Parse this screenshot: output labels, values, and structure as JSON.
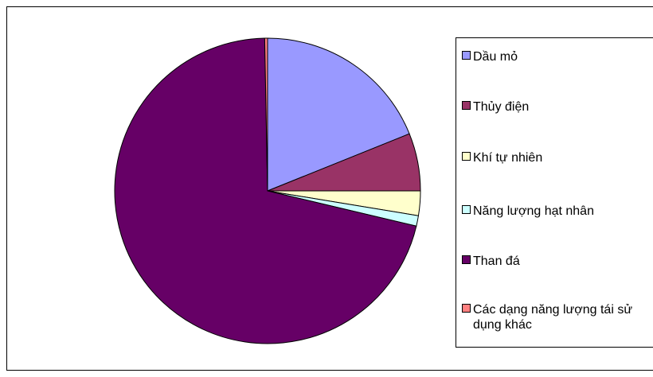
{
  "chart_data": {
    "type": "pie",
    "categories": [
      "Dầu mỏ",
      "Thủy điện",
      "Khí tự nhiên",
      "Năng lượng hạt nhân",
      "Than đá",
      "Các dạng năng lượng tái sử dụng khác"
    ],
    "values": [
      18.9,
      6.1,
      2.6,
      1.1,
      71.0,
      0.3
    ],
    "colors": [
      "#9999ff",
      "#993366",
      "#ffffcc",
      "#ccffff",
      "#660066",
      "#ff8080"
    ],
    "legend": "right"
  }
}
